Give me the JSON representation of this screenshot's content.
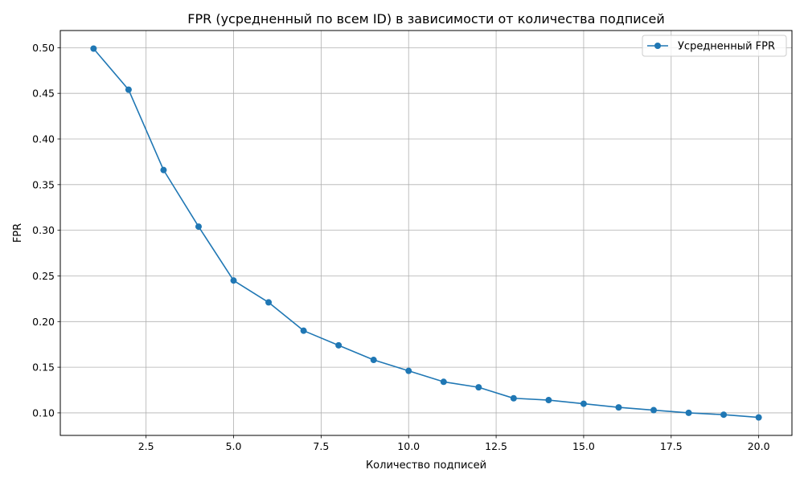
{
  "chart_data": {
    "type": "line",
    "title": "FPR (усредненный по всем ID) в зависимости от количества подписей",
    "xlabel": "Количество подписей",
    "ylabel": "FPR",
    "xlim": [
      0.05,
      20.95
    ],
    "ylim": [
      0.0753,
      0.5188
    ],
    "xticks": [
      2.5,
      5.0,
      7.5,
      10.0,
      12.5,
      15.0,
      17.5,
      20.0
    ],
    "xtick_labels": [
      "2.5",
      "5.0",
      "7.5",
      "10.0",
      "12.5",
      "15.0",
      "17.5",
      "20.0"
    ],
    "yticks": [
      0.1,
      0.15,
      0.2,
      0.25,
      0.3,
      0.35,
      0.4,
      0.45,
      0.5
    ],
    "ytick_labels": [
      "0.10",
      "0.15",
      "0.20",
      "0.25",
      "0.30",
      "0.35",
      "0.40",
      "0.45",
      "0.50"
    ],
    "grid": true,
    "legend_position": "top-right",
    "series": [
      {
        "name": "Усредненный FPR",
        "color": "#1f77b4",
        "marker": "circle",
        "x": [
          1,
          2,
          3,
          4,
          5,
          6,
          7,
          8,
          9,
          10,
          11,
          12,
          13,
          14,
          15,
          16,
          17,
          18,
          19,
          20
        ],
        "y": [
          0.499,
          0.454,
          0.366,
          0.304,
          0.245,
          0.221,
          0.19,
          0.174,
          0.158,
          0.146,
          0.134,
          0.128,
          0.116,
          0.114,
          0.11,
          0.106,
          0.103,
          0.1,
          0.098,
          0.095
        ]
      }
    ]
  }
}
